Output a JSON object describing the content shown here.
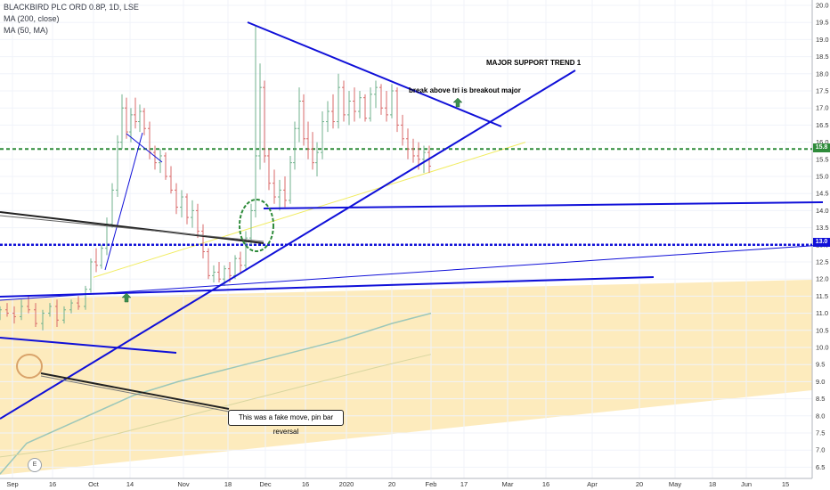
{
  "header": {
    "symbol_line": "BLACKBIRD PLC ORD 0.8P, 1D, LSE",
    "indicator_1": "MA (200, close)",
    "indicator_2": "MA (50, MA)"
  },
  "annotations": {
    "major_support": "MAJOR SUPPORT TREND 1",
    "break_above": "break above tri  is breakout major",
    "fake_move_note": "This was a fake move, pin bar reversal",
    "earnings_badge": "E"
  },
  "price_tags": {
    "green_level": "15.8",
    "blue_level": "13.0"
  },
  "colors": {
    "background": "#ffffff",
    "up_candle": "#70b28d",
    "down_candle": "#d86a6a",
    "trendline_blue": "#1010d8",
    "green_dashed": "#2e8b3a",
    "shade_zone": "#fde9b6",
    "ma200": "#9cc7b9",
    "ma50": "#d8d6a0",
    "yellow_line": "#f1ec60",
    "tag_blue": "#1010d8",
    "tag_green": "#2e8b3a"
  },
  "chart_data": {
    "type": "candlestick",
    "title": "BLACKBIRD PLC ORD 0.8P, 1D, LSE",
    "ylim": [
      6.2,
      20.2
    ],
    "y_ticks": [
      "6.5",
      "7.0",
      "7.5",
      "8.0",
      "8.5",
      "9.0",
      "9.5",
      "10.0",
      "10.5",
      "11.0",
      "11.5",
      "12.0",
      "12.5",
      "13.0",
      "13.5",
      "14.0",
      "14.5",
      "15.0",
      "15.5",
      "16.0",
      "16.5",
      "17.0",
      "17.5",
      "18.0",
      "18.5",
      "19.0",
      "19.5",
      "20.0"
    ],
    "x_ticks": [
      "Sep",
      "16",
      "Oct",
      "14",
      "Nov",
      "18",
      "Dec",
      "16",
      "2020",
      "20",
      "Feb",
      "17",
      "Mar",
      "16",
      "Apr",
      "20",
      "May",
      "18",
      "Jun",
      "15"
    ],
    "grid": true,
    "series": [
      {
        "name": "MA (200, close)",
        "points": [
          [
            0,
            6.3
          ],
          [
            30,
            7.2
          ],
          [
            90,
            7.9
          ],
          [
            150,
            8.6
          ],
          [
            200,
            9.0
          ],
          [
            260,
            9.4
          ],
          [
            320,
            9.8
          ],
          [
            380,
            10.2
          ],
          [
            440,
            10.7
          ],
          [
            484,
            11.0
          ]
        ]
      },
      {
        "name": "MA (50, MA)",
        "points": [
          [
            0,
            6.8
          ],
          [
            60,
            7.0
          ],
          [
            120,
            7.4
          ],
          [
            180,
            7.8
          ],
          [
            240,
            8.2
          ],
          [
            300,
            8.6
          ],
          [
            360,
            9.0
          ],
          [
            420,
            9.4
          ],
          [
            484,
            9.8
          ]
        ]
      }
    ],
    "horizontal_levels": [
      {
        "value": 15.8,
        "style": "dashed",
        "color": "green"
      },
      {
        "value": 13.0,
        "style": "dashed",
        "color": "blue"
      }
    ],
    "candles": [
      [
        0,
        11.0,
        11.2,
        10.8,
        11.1
      ],
      [
        8,
        11.1,
        11.3,
        10.9,
        11.0
      ],
      [
        16,
        11.0,
        11.2,
        10.7,
        10.9
      ],
      [
        24,
        10.9,
        11.4,
        10.8,
        11.2
      ],
      [
        32,
        11.2,
        11.5,
        11.0,
        11.1
      ],
      [
        40,
        11.1,
        11.3,
        10.6,
        10.7
      ],
      [
        48,
        10.7,
        11.1,
        10.5,
        11.0
      ],
      [
        56,
        11.0,
        11.3,
        10.9,
        11.2
      ],
      [
        64,
        11.2,
        11.4,
        10.6,
        10.8
      ],
      [
        72,
        10.8,
        11.2,
        10.7,
        11.1
      ],
      [
        80,
        11.1,
        11.4,
        11.0,
        11.3
      ],
      [
        88,
        11.3,
        11.5,
        11.1,
        11.2
      ],
      [
        96,
        11.2,
        11.8,
        11.1,
        11.7
      ],
      [
        102,
        11.7,
        12.6,
        11.6,
        12.5
      ],
      [
        108,
        12.5,
        12.9,
        12.2,
        12.4
      ],
      [
        114,
        12.4,
        13.0,
        12.3,
        12.9
      ],
      [
        120,
        12.9,
        13.8,
        12.7,
        13.6
      ],
      [
        126,
        13.6,
        14.8,
        13.5,
        14.6
      ],
      [
        132,
        14.6,
        16.2,
        14.4,
        16.0
      ],
      [
        137,
        16.0,
        17.4,
        15.8,
        17.0
      ],
      [
        142,
        17.0,
        17.3,
        16.1,
        16.3
      ],
      [
        147,
        16.3,
        17.0,
        16.0,
        16.8
      ],
      [
        152,
        16.8,
        17.3,
        16.4,
        16.6
      ],
      [
        157,
        16.6,
        17.1,
        16.3,
        16.9
      ],
      [
        162,
        16.9,
        17.0,
        16.2,
        16.4
      ],
      [
        168,
        16.4,
        16.6,
        15.5,
        15.7
      ],
      [
        174,
        15.7,
        15.9,
        15.2,
        15.4
      ],
      [
        180,
        15.4,
        15.8,
        15.1,
        15.6
      ],
      [
        186,
        15.6,
        15.7,
        14.9,
        15.0
      ],
      [
        192,
        15.0,
        15.3,
        14.5,
        14.6
      ],
      [
        198,
        14.6,
        14.8,
        13.9,
        14.1
      ],
      [
        204,
        14.1,
        14.6,
        13.8,
        14.4
      ],
      [
        210,
        14.4,
        14.5,
        13.6,
        13.8
      ],
      [
        216,
        13.8,
        14.3,
        13.5,
        14.0
      ],
      [
        222,
        14.0,
        14.2,
        13.2,
        13.4
      ],
      [
        228,
        13.4,
        13.6,
        12.6,
        12.8
      ],
      [
        234,
        12.8,
        12.9,
        12.0,
        12.1
      ],
      [
        240,
        12.1,
        12.4,
        11.9,
        12.2
      ],
      [
        246,
        12.2,
        12.5,
        11.9,
        12.0
      ],
      [
        252,
        12.0,
        12.4,
        11.8,
        12.3
      ],
      [
        258,
        12.3,
        12.5,
        11.9,
        12.1
      ],
      [
        264,
        12.1,
        12.7,
        12.0,
        12.6
      ],
      [
        270,
        12.6,
        12.8,
        12.2,
        12.4
      ],
      [
        276,
        12.4,
        13.4,
        12.3,
        13.2
      ],
      [
        282,
        13.2,
        14.2,
        13.0,
        14.0
      ],
      [
        287,
        14.0,
        19.4,
        13.8,
        15.6
      ],
      [
        292,
        15.6,
        18.3,
        15.2,
        17.6
      ],
      [
        297,
        17.6,
        17.8,
        15.4,
        15.6
      ],
      [
        302,
        15.6,
        15.8,
        14.6,
        14.8
      ],
      [
        308,
        14.8,
        15.2,
        14.2,
        14.4
      ],
      [
        314,
        14.4,
        14.9,
        14.0,
        14.6
      ],
      [
        320,
        14.6,
        15.0,
        14.1,
        14.3
      ],
      [
        326,
        14.3,
        15.6,
        14.2,
        15.4
      ],
      [
        331,
        15.4,
        16.6,
        15.2,
        16.4
      ],
      [
        336,
        16.4,
        17.6,
        16.0,
        17.2
      ],
      [
        341,
        17.2,
        17.4,
        15.9,
        16.1
      ],
      [
        346,
        16.1,
        16.6,
        15.5,
        15.8
      ],
      [
        351,
        15.8,
        16.3,
        15.2,
        15.4
      ],
      [
        356,
        15.4,
        16.0,
        15.0,
        15.7
      ],
      [
        362,
        15.7,
        16.9,
        15.5,
        16.6
      ],
      [
        368,
        16.6,
        17.2,
        16.3,
        16.9
      ],
      [
        374,
        16.9,
        17.4,
        16.4,
        16.6
      ],
      [
        380,
        16.6,
        18.0,
        16.4,
        17.6
      ],
      [
        386,
        17.6,
        17.8,
        16.6,
        16.8
      ],
      [
        392,
        16.8,
        17.5,
        16.5,
        17.2
      ],
      [
        398,
        17.2,
        17.6,
        16.6,
        16.9
      ],
      [
        404,
        16.9,
        17.5,
        16.7,
        17.3
      ],
      [
        410,
        17.3,
        17.4,
        16.6,
        16.7
      ],
      [
        416,
        16.7,
        17.6,
        16.6,
        17.4
      ],
      [
        422,
        17.4,
        17.8,
        17.0,
        17.6
      ],
      [
        428,
        17.6,
        17.7,
        16.8,
        17.0
      ],
      [
        434,
        17.0,
        17.5,
        16.6,
        16.8
      ],
      [
        440,
        16.8,
        17.7,
        16.7,
        17.5
      ],
      [
        446,
        17.5,
        17.6,
        16.3,
        16.5
      ],
      [
        452,
        16.5,
        16.8,
        15.9,
        16.1
      ],
      [
        458,
        16.1,
        16.4,
        15.5,
        15.8
      ],
      [
        464,
        15.8,
        16.1,
        15.4,
        15.6
      ],
      [
        470,
        15.6,
        16.0,
        15.2,
        15.5
      ],
      [
        476,
        15.5,
        15.9,
        15.1,
        15.7
      ],
      [
        482,
        15.7,
        15.9,
        15.1,
        15.3
      ]
    ]
  }
}
